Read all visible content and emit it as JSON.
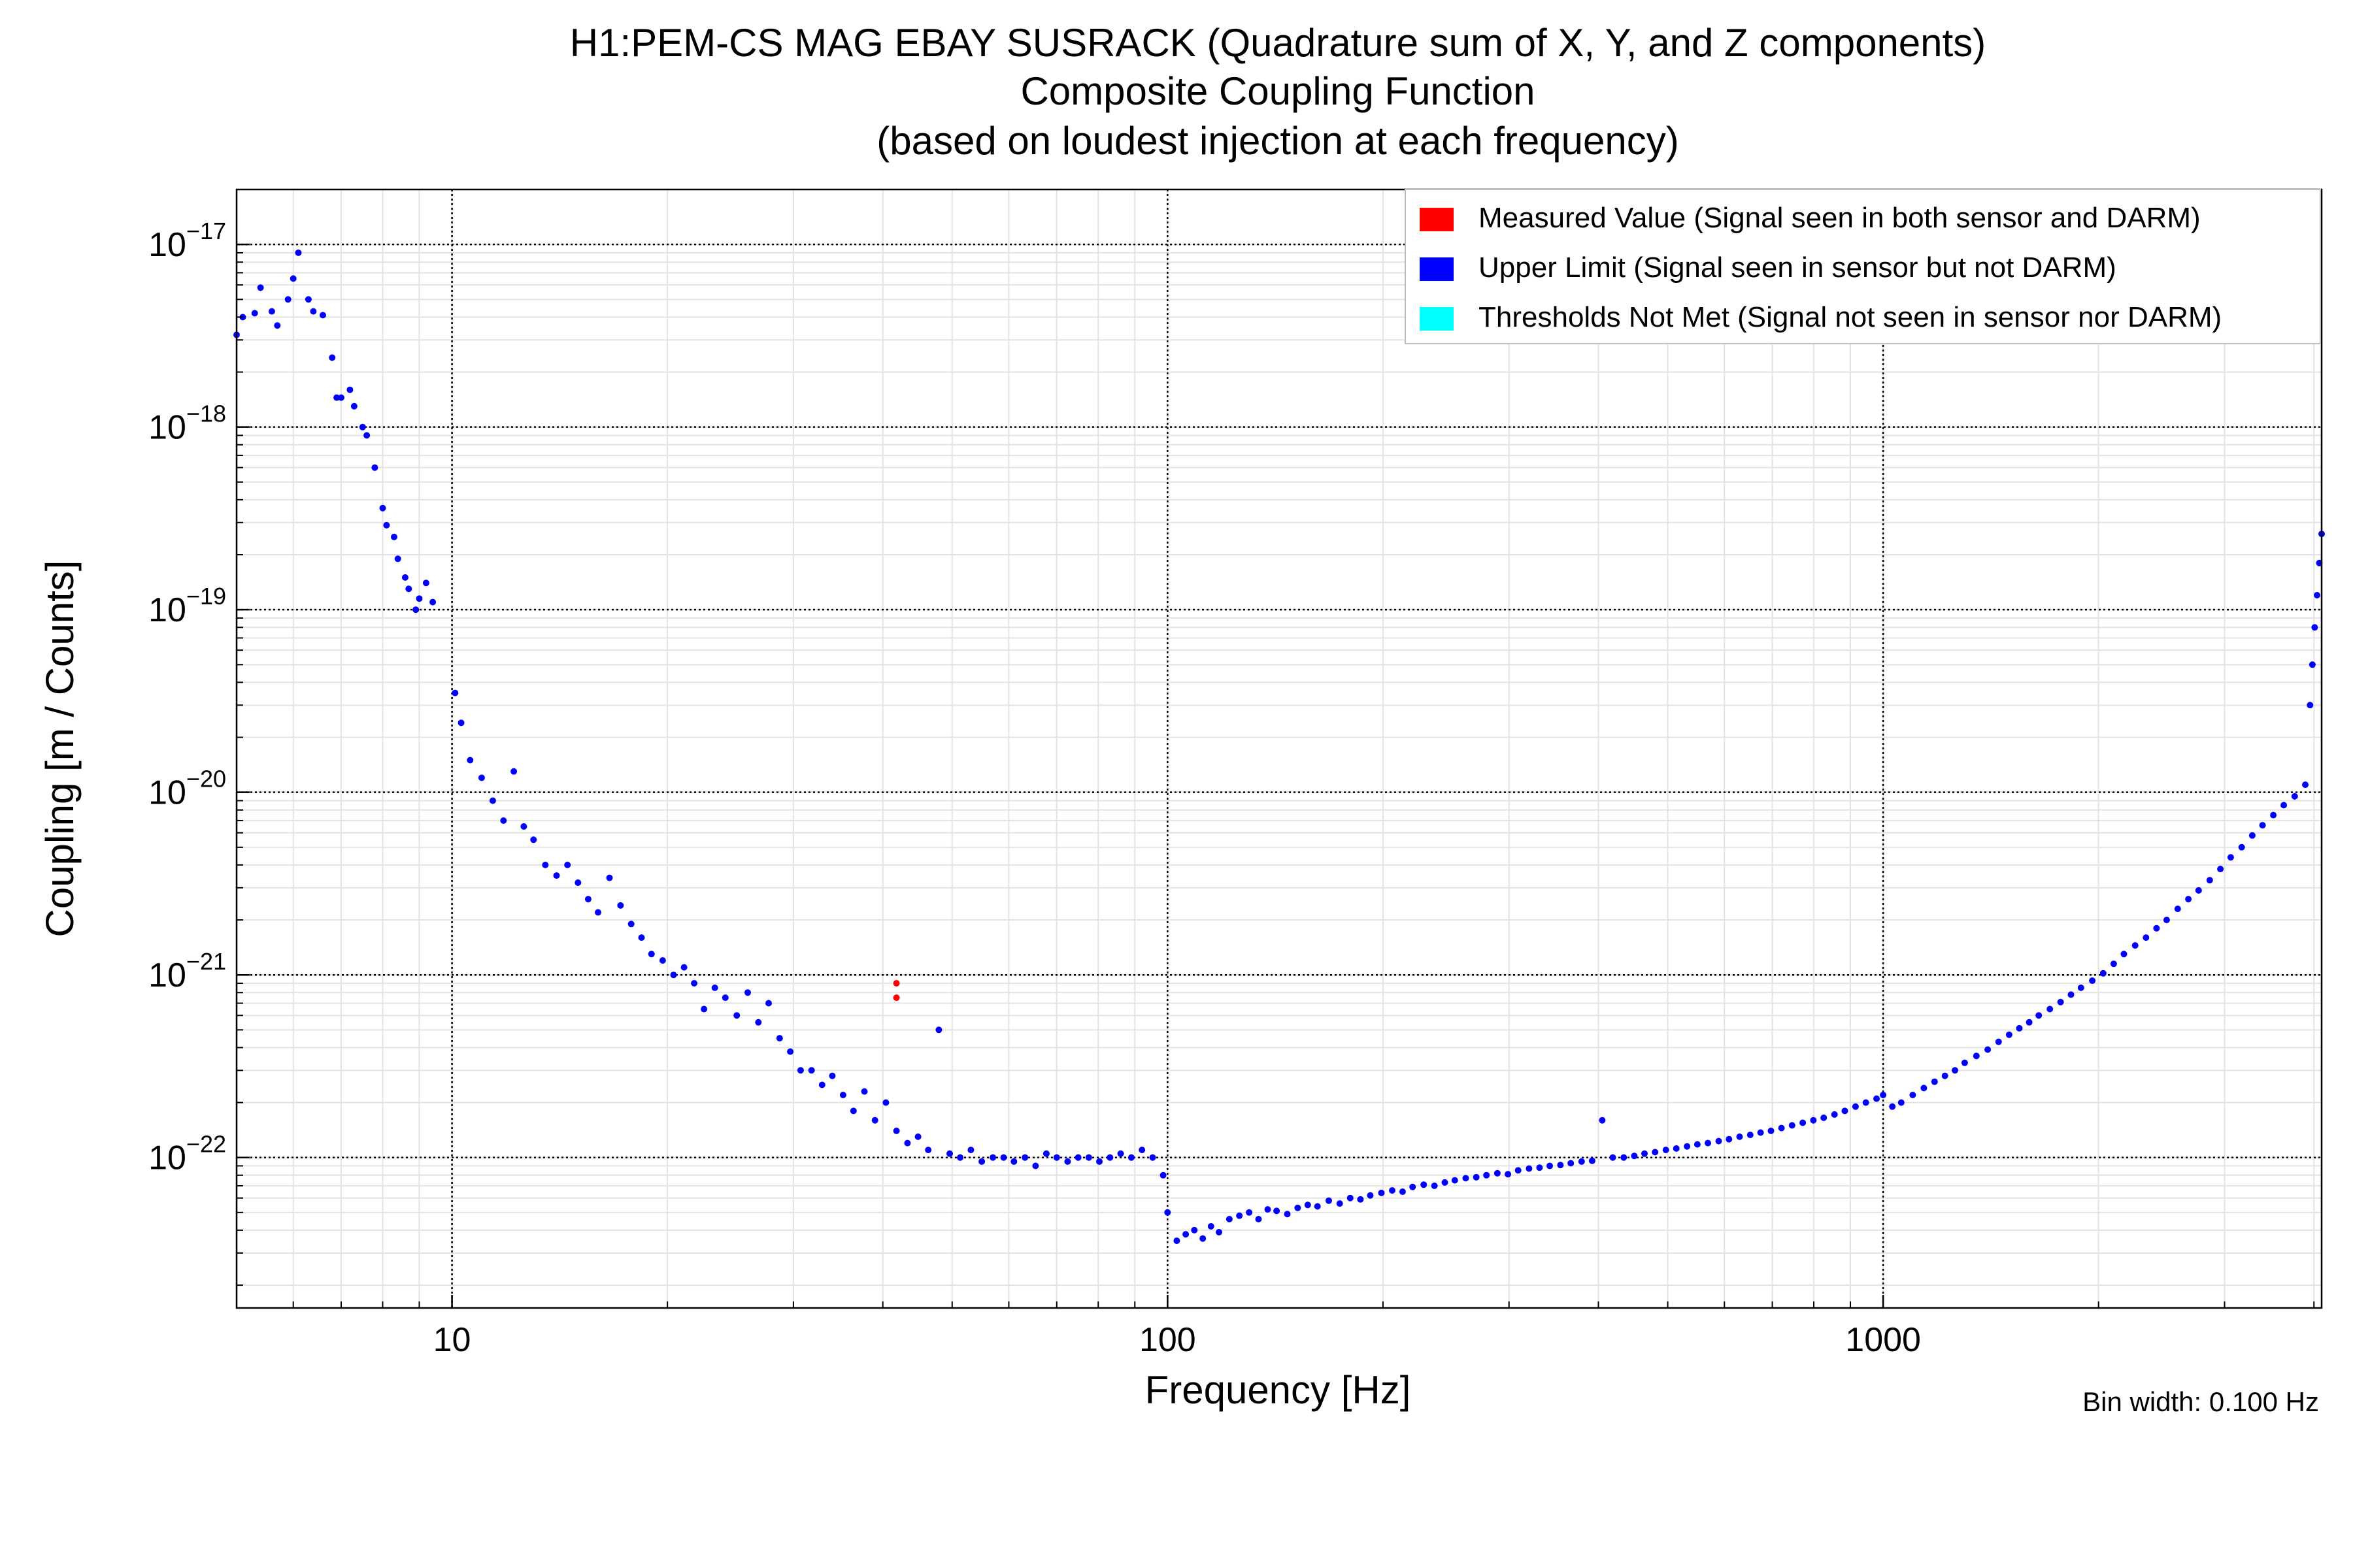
{
  "chart_data": {
    "type": "scatter",
    "title": [
      "H1:PEM-CS MAG EBAY SUSRACK (Quadrature sum of X, Y, and Z components)",
      "Composite Coupling Function",
      "(based on loudest injection at each frequency)"
    ],
    "xlabel": "Frequency [Hz]",
    "ylabel": "Coupling [m / Counts]",
    "xscale": "log",
    "yscale": "log",
    "xlim": [
      5,
      4100
    ],
    "ylim": [
      1.5e-23,
      2e-17
    ],
    "x_ticks": [
      {
        "value": 10,
        "label": "10"
      },
      {
        "value": 100,
        "label": "100"
      },
      {
        "value": 1000,
        "label": "1000"
      }
    ],
    "y_ticks": [
      {
        "value": 1e-17,
        "base": "10",
        "exp": "−17"
      },
      {
        "value": 1e-18,
        "base": "10",
        "exp": "−18"
      },
      {
        "value": 1e-19,
        "base": "10",
        "exp": "−19"
      },
      {
        "value": 1e-20,
        "base": "10",
        "exp": "−20"
      },
      {
        "value": 1e-21,
        "base": "10",
        "exp": "−21"
      },
      {
        "value": 1e-22,
        "base": "10",
        "exp": "−22"
      }
    ],
    "grid": true,
    "legend_position": "top-right",
    "legend": [
      {
        "label": "Measured Value (Signal seen in both sensor and DARM)",
        "color": "#ff0000"
      },
      {
        "label": "Upper Limit (Signal seen in sensor but not DARM)",
        "color": "#0000ff"
      },
      {
        "label": "Thresholds Not Met (Signal not seen in sensor nor DARM)",
        "color": "#00ffff"
      }
    ],
    "annotation": "Bin width: 0.100 Hz",
    "series": [
      {
        "name": "Measured Value (Signal seen in both sensor and DARM)",
        "color": "#ff0000",
        "points": [
          [
            41.8,
            9e-22
          ],
          [
            41.8,
            7.5e-22
          ]
        ]
      },
      {
        "name": "Upper Limit (Signal seen in sensor but not DARM)",
        "color": "#0000ff",
        "points": [
          [
            5.0,
            3.2e-18
          ],
          [
            5.1,
            4e-18
          ],
          [
            5.3,
            4.2e-18
          ],
          [
            5.4,
            5.8e-18
          ],
          [
            5.6,
            4.3e-18
          ],
          [
            5.7,
            3.6e-18
          ],
          [
            5.9,
            5e-18
          ],
          [
            6.0,
            6.5e-18
          ],
          [
            6.1,
            9e-18
          ],
          [
            6.3,
            5e-18
          ],
          [
            6.4,
            4.3e-18
          ],
          [
            6.6,
            4.1e-18
          ],
          [
            6.8,
            2.4e-18
          ],
          [
            6.9,
            1.45e-18
          ],
          [
            7.0,
            1.45e-18
          ],
          [
            7.2,
            1.6e-18
          ],
          [
            7.3,
            1.3e-18
          ],
          [
            7.5,
            1e-18
          ],
          [
            7.6,
            9e-19
          ],
          [
            7.8,
            6e-19
          ],
          [
            8.0,
            3.6e-19
          ],
          [
            8.1,
            2.9e-19
          ],
          [
            8.3,
            2.5e-19
          ],
          [
            8.4,
            1.9e-19
          ],
          [
            8.6,
            1.5e-19
          ],
          [
            8.7,
            1.3e-19
          ],
          [
            8.9,
            1e-19
          ],
          [
            9.0,
            1.15e-19
          ],
          [
            9.2,
            1.4e-19
          ],
          [
            9.4,
            1.1e-19
          ],
          [
            10.1,
            3.5e-20
          ],
          [
            10.3,
            2.4e-20
          ],
          [
            10.6,
            1.5e-20
          ],
          [
            11.0,
            1.2e-20
          ],
          [
            11.4,
            9e-21
          ],
          [
            11.8,
            7e-21
          ],
          [
            12.2,
            1.3e-20
          ],
          [
            12.6,
            6.5e-21
          ],
          [
            13.0,
            5.5e-21
          ],
          [
            13.5,
            4e-21
          ],
          [
            14.0,
            3.5e-21
          ],
          [
            14.5,
            4e-21
          ],
          [
            15.0,
            3.2e-21
          ],
          [
            15.5,
            2.6e-21
          ],
          [
            16.0,
            2.2e-21
          ],
          [
            16.6,
            3.4e-21
          ],
          [
            17.2,
            2.4e-21
          ],
          [
            17.8,
            1.9e-21
          ],
          [
            18.4,
            1.6e-21
          ],
          [
            19.0,
            1.3e-21
          ],
          [
            19.7,
            1.2e-21
          ],
          [
            20.4,
            1e-21
          ],
          [
            21.1,
            1.1e-21
          ],
          [
            21.8,
            9e-22
          ],
          [
            22.5,
            6.5e-22
          ],
          [
            23.3,
            8.5e-22
          ],
          [
            24.1,
            7.5e-22
          ],
          [
            25.0,
            6e-22
          ],
          [
            25.9,
            8e-22
          ],
          [
            26.8,
            5.5e-22
          ],
          [
            27.7,
            7e-22
          ],
          [
            28.7,
            4.5e-22
          ],
          [
            29.7,
            3.8e-22
          ],
          [
            30.7,
            3e-22
          ],
          [
            31.8,
            3e-22
          ],
          [
            32.9,
            2.5e-22
          ],
          [
            34.0,
            2.8e-22
          ],
          [
            35.2,
            2.2e-22
          ],
          [
            36.4,
            1.8e-22
          ],
          [
            37.7,
            2.3e-22
          ],
          [
            39.0,
            1.6e-22
          ],
          [
            40.4,
            2e-22
          ],
          [
            41.8,
            1.4e-22
          ],
          [
            43.3,
            1.2e-22
          ],
          [
            44.8,
            1.3e-22
          ],
          [
            46.3,
            1.1e-22
          ],
          [
            47.9,
            5e-22
          ],
          [
            49.6,
            1.05e-22
          ],
          [
            51.3,
            1e-22
          ],
          [
            53.1,
            1.1e-22
          ],
          [
            55.0,
            9.5e-23
          ],
          [
            57.0,
            1e-22
          ],
          [
            59.0,
            1e-22
          ],
          [
            61.0,
            9.5e-23
          ],
          [
            63.2,
            1e-22
          ],
          [
            65.4,
            9e-23
          ],
          [
            67.7,
            1.05e-22
          ],
          [
            70.0,
            1e-22
          ],
          [
            72.5,
            9.5e-23
          ],
          [
            75.0,
            1e-22
          ],
          [
            77.6,
            1e-22
          ],
          [
            80.3,
            9.5e-23
          ],
          [
            83.1,
            1e-22
          ],
          [
            86.0,
            1.05e-22
          ],
          [
            89.0,
            1e-22
          ],
          [
            92.1,
            1.1e-22
          ],
          [
            95.3,
            1e-22
          ],
          [
            98.6,
            8e-23
          ],
          [
            100,
            5e-23
          ],
          [
            103,
            3.5e-23
          ],
          [
            106,
            3.8e-23
          ],
          [
            109,
            4e-23
          ],
          [
            112,
            3.6e-23
          ],
          [
            115,
            4.2e-23
          ],
          [
            118,
            3.9e-23
          ],
          [
            122,
            4.6e-23
          ],
          [
            126,
            4.8e-23
          ],
          [
            130,
            5e-23
          ],
          [
            134,
            4.6e-23
          ],
          [
            138,
            5.2e-23
          ],
          [
            142,
            5.1e-23
          ],
          [
            147,
            4.9e-23
          ],
          [
            152,
            5.3e-23
          ],
          [
            157,
            5.5e-23
          ],
          [
            162,
            5.4e-23
          ],
          [
            168,
            5.8e-23
          ],
          [
            174,
            5.6e-23
          ],
          [
            180,
            6e-23
          ],
          [
            186,
            5.9e-23
          ],
          [
            192,
            6.2e-23
          ],
          [
            199,
            6.4e-23
          ],
          [
            206,
            6.6e-23
          ],
          [
            213,
            6.5e-23
          ],
          [
            220,
            6.9e-23
          ],
          [
            228,
            7.1e-23
          ],
          [
            236,
            7e-23
          ],
          [
            244,
            7.3e-23
          ],
          [
            252,
            7.5e-23
          ],
          [
            261,
            7.7e-23
          ],
          [
            270,
            7.8e-23
          ],
          [
            279,
            8e-23
          ],
          [
            289,
            8.2e-23
          ],
          [
            299,
            8.1e-23
          ],
          [
            309,
            8.5e-23
          ],
          [
            320,
            8.7e-23
          ],
          [
            331,
            8.8e-23
          ],
          [
            342,
            9e-23
          ],
          [
            354,
            9.1e-23
          ],
          [
            366,
            9.3e-23
          ],
          [
            379,
            9.5e-23
          ],
          [
            392,
            9.6e-23
          ],
          [
            405,
            1.6e-22
          ],
          [
            419,
            1e-22
          ],
          [
            434,
            1e-22
          ],
          [
            449,
            1.02e-22
          ],
          [
            464,
            1.05e-22
          ],
          [
            480,
            1.07e-22
          ],
          [
            497,
            1.1e-22
          ],
          [
            514,
            1.12e-22
          ],
          [
            532,
            1.15e-22
          ],
          [
            550,
            1.18e-22
          ],
          [
            569,
            1.2e-22
          ],
          [
            589,
            1.23e-22
          ],
          [
            609,
            1.26e-22
          ],
          [
            630,
            1.3e-22
          ],
          [
            652,
            1.33e-22
          ],
          [
            674,
            1.37e-22
          ],
          [
            697,
            1.4e-22
          ],
          [
            721,
            1.45e-22
          ],
          [
            746,
            1.5e-22
          ],
          [
            772,
            1.55e-22
          ],
          [
            799,
            1.6e-22
          ],
          [
            826,
            1.65e-22
          ],
          [
            855,
            1.72e-22
          ],
          [
            884,
            1.8e-22
          ],
          [
            915,
            1.9e-22
          ],
          [
            946,
            2e-22
          ],
          [
            979,
            2.1e-22
          ],
          [
            1000,
            2.2e-22
          ],
          [
            1030,
            1.9e-22
          ],
          [
            1060,
            2e-22
          ],
          [
            1100,
            2.2e-22
          ],
          [
            1140,
            2.4e-22
          ],
          [
            1180,
            2.6e-22
          ],
          [
            1220,
            2.8e-22
          ],
          [
            1260,
            3e-22
          ],
          [
            1300,
            3.3e-22
          ],
          [
            1350,
            3.6e-22
          ],
          [
            1400,
            3.9e-22
          ],
          [
            1450,
            4.3e-22
          ],
          [
            1500,
            4.7e-22
          ],
          [
            1550,
            5.1e-22
          ],
          [
            1600,
            5.5e-22
          ],
          [
            1650,
            6e-22
          ],
          [
            1710,
            6.5e-22
          ],
          [
            1770,
            7.1e-22
          ],
          [
            1830,
            7.8e-22
          ],
          [
            1890,
            8.5e-22
          ],
          [
            1960,
            9.3e-22
          ],
          [
            2030,
            1.02e-21
          ],
          [
            2100,
            1.15e-21
          ],
          [
            2170,
            1.3e-21
          ],
          [
            2250,
            1.45e-21
          ],
          [
            2330,
            1.6e-21
          ],
          [
            2410,
            1.8e-21
          ],
          [
            2490,
            2e-21
          ],
          [
            2580,
            2.3e-21
          ],
          [
            2670,
            2.6e-21
          ],
          [
            2760,
            2.9e-21
          ],
          [
            2860,
            3.3e-21
          ],
          [
            2960,
            3.8e-21
          ],
          [
            3060,
            4.4e-21
          ],
          [
            3170,
            5e-21
          ],
          [
            3280,
            5.8e-21
          ],
          [
            3390,
            6.6e-21
          ],
          [
            3510,
            7.5e-21
          ],
          [
            3630,
            8.5e-21
          ],
          [
            3760,
            9.5e-21
          ],
          [
            3890,
            1.1e-20
          ],
          [
            3950,
            3e-20
          ],
          [
            3980,
            5e-20
          ],
          [
            4010,
            8e-20
          ],
          [
            4040,
            1.2e-19
          ],
          [
            4070,
            1.8e-19
          ],
          [
            4100,
            2.6e-19
          ]
        ]
      },
      {
        "name": "Thresholds Not Met (Signal not seen in sensor nor DARM)",
        "color": "#00ffff",
        "points": []
      }
    ]
  }
}
